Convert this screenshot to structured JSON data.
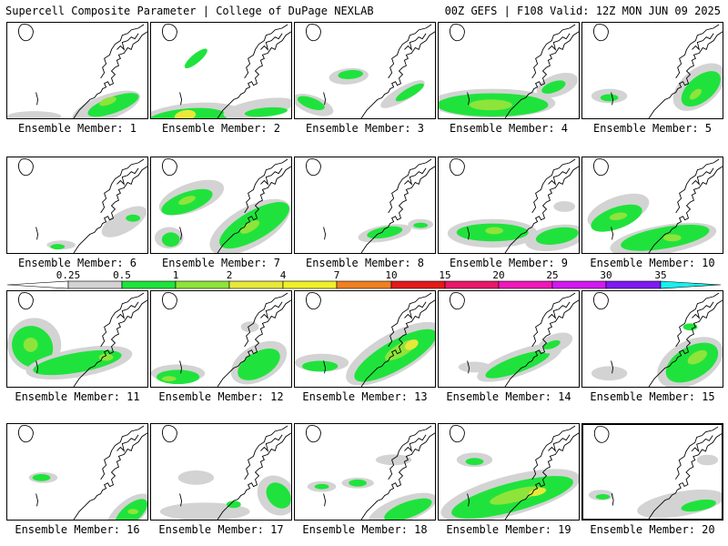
{
  "header": {
    "left": "Supercell Composite Parameter | College of DuPage NEXLAB",
    "right": "00Z GEFS | F108 Valid: 12Z MON JUN 09 2025"
  },
  "legend": {
    "ticks": [
      "0.25",
      "0.5",
      "1",
      "2",
      "4",
      "7",
      "10",
      "15",
      "20",
      "25",
      "30",
      "35"
    ],
    "colors": [
      "#d3d3d3",
      "#1fe33c",
      "#8ee43a",
      "#e8e83a",
      "#f0f02a",
      "#f08020",
      "#e31a1a",
      "#e8186a",
      "#ef18b8",
      "#d21af0",
      "#7e1af0",
      "#a868e0",
      "#19f0f0"
    ]
  },
  "members": [
    {
      "label": "Ensemble Member: 1",
      "highlighted": false
    },
    {
      "label": "Ensemble Member: 2",
      "highlighted": false
    },
    {
      "label": "Ensemble Member: 3",
      "highlighted": false
    },
    {
      "label": "Ensemble Member: 4",
      "highlighted": false
    },
    {
      "label": "Ensemble Member: 5",
      "highlighted": false
    },
    {
      "label": "Ensemble Member: 6",
      "highlighted": false
    },
    {
      "label": "Ensemble Member: 7",
      "highlighted": false
    },
    {
      "label": "Ensemble Member: 8",
      "highlighted": false
    },
    {
      "label": "Ensemble Member: 9",
      "highlighted": false
    },
    {
      "label": "Ensemble Member: 10",
      "highlighted": false
    },
    {
      "label": "Ensemble Member: 11",
      "highlighted": false
    },
    {
      "label": "Ensemble Member: 12",
      "highlighted": false
    },
    {
      "label": "Ensemble Member: 13",
      "highlighted": false
    },
    {
      "label": "Ensemble Member: 14",
      "highlighted": false
    },
    {
      "label": "Ensemble Member: 15",
      "highlighted": false
    },
    {
      "label": "Ensemble Member: 16",
      "highlighted": false
    },
    {
      "label": "Ensemble Member: 17",
      "highlighted": false
    },
    {
      "label": "Ensemble Member: 18",
      "highlighted": false
    },
    {
      "label": "Ensemble Member: 19",
      "highlighted": false
    },
    {
      "label": "Ensemble Member: 20",
      "highlighted": true
    }
  ]
}
